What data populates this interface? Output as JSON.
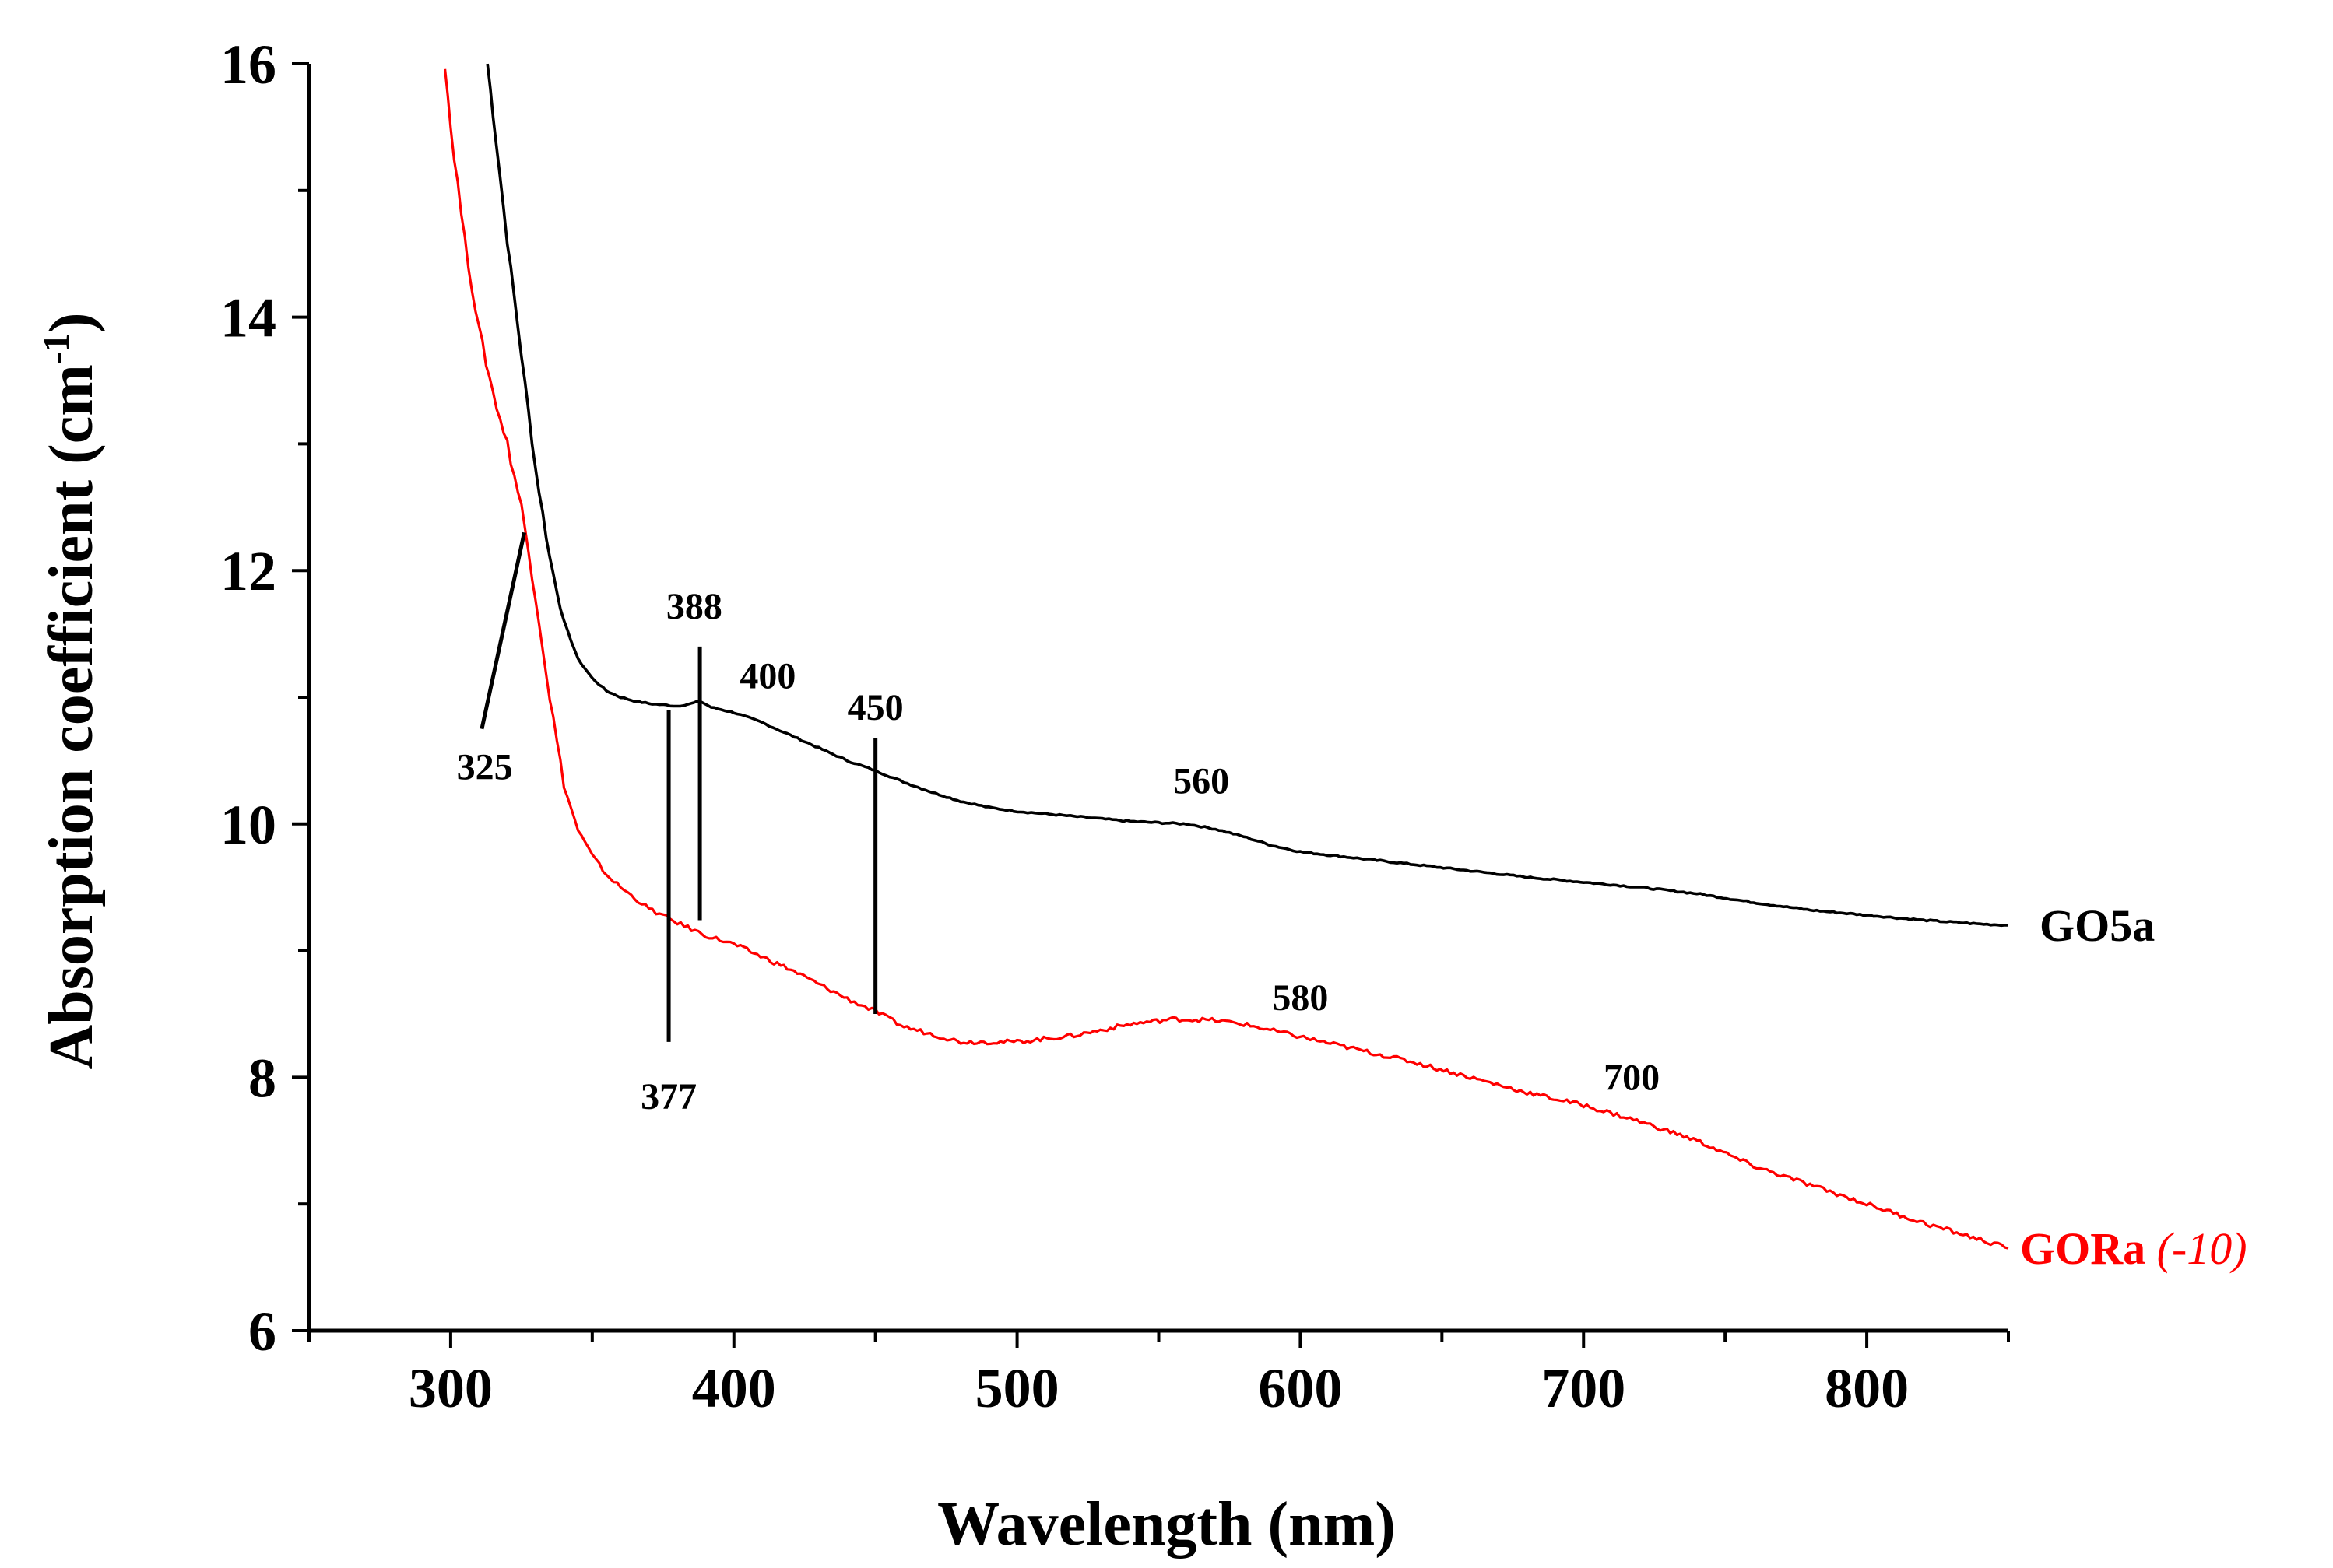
{
  "chart_data": {
    "type": "line",
    "title": "",
    "xlabel": "Wavelength (nm)",
    "ylabel_main": "Absorption coefficient (cm",
    "ylabel_sup": "-1",
    "ylabel_close": ")",
    "xlim": [
      250,
      850
    ],
    "ylim": [
      6,
      16
    ],
    "xticks": [
      300,
      400,
      500,
      600,
      700,
      800
    ],
    "xtick_labels": [
      "300",
      "400",
      "500",
      "600",
      "700",
      "800"
    ],
    "yticks": [
      6,
      8,
      10,
      12,
      14,
      16
    ],
    "ytick_labels": [
      "6",
      "8",
      "10",
      "12",
      "14",
      "16"
    ],
    "grid": false,
    "series": [
      {
        "name": "GO5a",
        "label_text": "GO5a",
        "label_suffix": "",
        "color": "#000000",
        "x": [
          313,
          316,
          320,
          325,
          330,
          335,
          340,
          345,
          350,
          355,
          360,
          365,
          370,
          375,
          380,
          385,
          388,
          392,
          400,
          410,
          420,
          430,
          440,
          450,
          460,
          470,
          480,
          490,
          500,
          510,
          520,
          530,
          540,
          550,
          560,
          570,
          580,
          590,
          600,
          620,
          640,
          660,
          680,
          700,
          720,
          740,
          760,
          780,
          800,
          820,
          840,
          850
        ],
        "y": [
          16.0,
          15.4,
          14.6,
          13.7,
          12.8,
          12.1,
          11.6,
          11.3,
          11.15,
          11.05,
          11.0,
          10.97,
          10.95,
          10.94,
          10.93,
          10.95,
          10.97,
          10.92,
          10.88,
          10.8,
          10.7,
          10.6,
          10.5,
          10.42,
          10.33,
          10.25,
          10.18,
          10.13,
          10.1,
          10.08,
          10.06,
          10.04,
          10.02,
          10.01,
          10.0,
          9.96,
          9.9,
          9.83,
          9.78,
          9.73,
          9.68,
          9.63,
          9.58,
          9.54,
          9.5,
          9.45,
          9.38,
          9.32,
          9.28,
          9.24,
          9.21,
          9.2
        ]
      },
      {
        "name": "GORa",
        "label_text": "GORa",
        "label_suffix": "(-10)",
        "color": "#ff0000",
        "x": [
          298,
          300,
          305,
          310,
          315,
          320,
          325,
          330,
          335,
          340,
          345,
          350,
          355,
          360,
          370,
          380,
          390,
          400,
          420,
          440,
          450,
          460,
          480,
          500,
          520,
          540,
          555,
          570,
          580,
          600,
          620,
          640,
          660,
          680,
          700,
          720,
          740,
          760,
          780,
          800,
          820,
          840,
          850
        ],
        "y": [
          16.0,
          15.5,
          14.6,
          13.9,
          13.4,
          13.0,
          12.5,
          11.8,
          11.0,
          10.3,
          9.95,
          9.75,
          9.6,
          9.5,
          9.33,
          9.22,
          9.12,
          9.05,
          8.85,
          8.62,
          8.52,
          8.4,
          8.28,
          8.28,
          8.33,
          8.42,
          8.46,
          8.45,
          8.42,
          8.32,
          8.22,
          8.12,
          8.0,
          7.88,
          7.78,
          7.65,
          7.5,
          7.3,
          7.15,
          7.0,
          6.85,
          6.72,
          6.65
        ]
      }
    ],
    "annotations": [
      {
        "label": "325",
        "text_x": 312,
        "text_y": 10.45,
        "line": [
          [
            311,
            10.75
          ],
          [
            326,
            12.3
          ]
        ]
      },
      {
        "label": "377",
        "text_x": 377,
        "text_y": 7.85,
        "line": [
          [
            377,
            8.28
          ],
          [
            377,
            10.9
          ]
        ]
      },
      {
        "label": "388",
        "text_x": 386,
        "text_y": 11.72,
        "line": [
          [
            388,
            9.24
          ],
          [
            388,
            11.4
          ]
        ]
      },
      {
        "label": "400",
        "text_x": 412,
        "text_y": 11.17,
        "line": null
      },
      {
        "label": "450",
        "text_x": 450,
        "text_y": 10.92,
        "line": [
          [
            450,
            8.5
          ],
          [
            450,
            10.68
          ]
        ]
      },
      {
        "label": "560",
        "text_x": 565,
        "text_y": 10.34,
        "line": null
      },
      {
        "label": "580",
        "text_x": 600,
        "text_y": 8.63,
        "line": null
      },
      {
        "label": "700",
        "text_x": 717,
        "text_y": 8.0,
        "line": null
      }
    ]
  }
}
